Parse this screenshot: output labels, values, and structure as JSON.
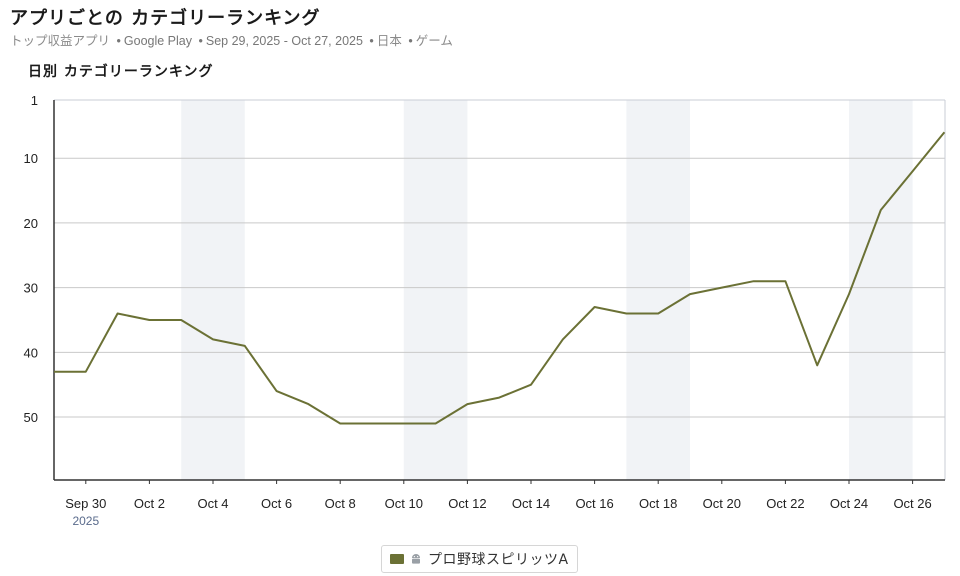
{
  "header": {
    "title": "アプリごとの カテゴリーランキング",
    "subtitle_type": "トップ収益アプリ",
    "subtitle_store": "Google Play",
    "subtitle_range": "Sep 29, 2025 - Oct 27, 2025",
    "subtitle_country": "日本",
    "subtitle_category": "ゲーム",
    "separator": "•"
  },
  "chart_data": {
    "type": "line",
    "title": "日別 カテゴリーランキング",
    "y_inverted": true,
    "ylim": [
      1,
      60
    ],
    "yticks": [
      1,
      10,
      20,
      30,
      40,
      50
    ],
    "x_start": "Sep 29",
    "x_ticks": [
      {
        "day": 1,
        "label": "Sep 30",
        "sublabel": "2025"
      },
      {
        "day": 3,
        "label": "Oct 2"
      },
      {
        "day": 5,
        "label": "Oct 4"
      },
      {
        "day": 7,
        "label": "Oct 6"
      },
      {
        "day": 9,
        "label": "Oct 8"
      },
      {
        "day": 11,
        "label": "Oct 10"
      },
      {
        "day": 13,
        "label": "Oct 12"
      },
      {
        "day": 15,
        "label": "Oct 14"
      },
      {
        "day": 17,
        "label": "Oct 16"
      },
      {
        "day": 19,
        "label": "Oct 18"
      },
      {
        "day": 21,
        "label": "Oct 20"
      },
      {
        "day": 23,
        "label": "Oct 22"
      },
      {
        "day": 25,
        "label": "Oct 24"
      },
      {
        "day": 27,
        "label": "Oct 26"
      }
    ],
    "weekend_bands": [
      [
        4,
        6
      ],
      [
        11,
        13
      ],
      [
        18,
        20
      ],
      [
        25,
        27
      ]
    ],
    "series": [
      {
        "name": "プロ野球スピリッツA",
        "color": "#6b7135",
        "platform_icon": "android-icon",
        "x": [
          "Sep 29",
          "Sep 30",
          "Oct 1",
          "Oct 2",
          "Oct 3",
          "Oct 4",
          "Oct 5",
          "Oct 6",
          "Oct 7",
          "Oct 8",
          "Oct 9",
          "Oct 10",
          "Oct 11",
          "Oct 12",
          "Oct 13",
          "Oct 14",
          "Oct 15",
          "Oct 16",
          "Oct 17",
          "Oct 18",
          "Oct 19",
          "Oct 20",
          "Oct 21",
          "Oct 22",
          "Oct 23",
          "Oct 24",
          "Oct 25",
          "Oct 26",
          "Oct 27"
        ],
        "values": [
          43,
          43,
          34,
          35,
          35,
          38,
          39,
          46,
          48,
          51,
          51,
          51,
          51,
          48,
          47,
          45,
          38,
          33,
          34,
          34,
          31,
          30,
          29,
          29,
          42,
          31,
          18,
          12,
          6
        ]
      }
    ],
    "grid": true,
    "legend_position": "bottom-center"
  }
}
